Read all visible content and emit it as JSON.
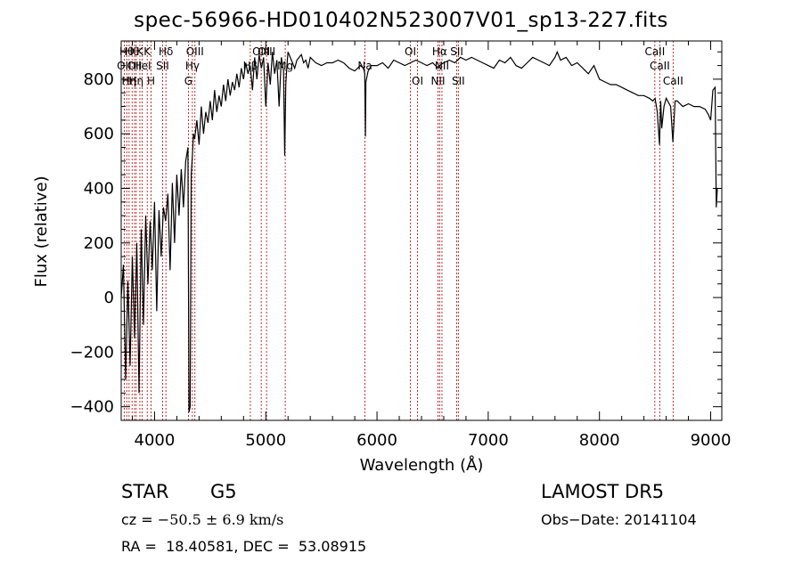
{
  "chart_data": {
    "type": "line",
    "title": "spec-56966-HD010402N523007V01_sp13-227.fits",
    "xlabel": "Wavelength (Å)",
    "ylabel": "Flux (relative)",
    "xlim": [
      3700,
      9100
    ],
    "ylim": [
      -450,
      940
    ],
    "xticks": [
      4000,
      5000,
      6000,
      7000,
      8000,
      9000
    ],
    "yticks": [
      -400,
      -200,
      0,
      200,
      400,
      600,
      800
    ],
    "grid": false,
    "series": [
      {
        "x": [
          3700,
          3720,
          3740,
          3760,
          3780,
          3800,
          3820,
          3840,
          3860,
          3880,
          3900,
          3920,
          3940,
          3960,
          3980,
          4000,
          4020,
          4040,
          4060,
          4080,
          4100,
          4120,
          4140,
          4160,
          4180,
          4200,
          4220,
          4240,
          4260,
          4280,
          4300,
          4310,
          4320,
          4330,
          4340,
          4350,
          4360,
          4380,
          4400,
          4420,
          4440,
          4460,
          4480,
          4500,
          4520,
          4540,
          4560,
          4580,
          4600,
          4620,
          4640,
          4660,
          4680,
          4700,
          4720,
          4740,
          4760,
          4780,
          4800,
          4820,
          4840,
          4860,
          4880,
          4900,
          4920,
          4940,
          4960,
          4980,
          5000,
          5020,
          5040,
          5060,
          5080,
          5100,
          5120,
          5140,
          5160,
          5170,
          5180,
          5190,
          5200,
          5220,
          5240,
          5260,
          5280,
          5300,
          5320,
          5340,
          5360,
          5380,
          5400,
          5450,
          5500,
          5550,
          5600,
          5650,
          5700,
          5750,
          5800,
          5850,
          5880,
          5890,
          5896,
          5900,
          5920,
          5950,
          6000,
          6050,
          6100,
          6150,
          6200,
          6250,
          6300,
          6350,
          6400,
          6450,
          6500,
          6550,
          6563,
          6600,
          6650,
          6700,
          6750,
          6800,
          6850,
          6900,
          6950,
          7000,
          7050,
          7100,
          7150,
          7200,
          7250,
          7300,
          7350,
          7400,
          7450,
          7500,
          7550,
          7600,
          7620,
          7650,
          7700,
          7750,
          7800,
          7850,
          7900,
          7950,
          8000,
          8050,
          8100,
          8150,
          8200,
          8250,
          8300,
          8350,
          8400,
          8450,
          8480,
          8500,
          8520,
          8540,
          8550,
          8560,
          8580,
          8600,
          8640,
          8660,
          8680,
          8700,
          8750,
          8800,
          8850,
          8900,
          8950,
          8980,
          9000,
          9020,
          9040,
          9050,
          9060
        ],
        "y": [
          0,
          120,
          -300,
          60,
          -250,
          150,
          -150,
          200,
          -350,
          250,
          -100,
          300,
          50,
          280,
          100,
          350,
          -50,
          320,
          150,
          330,
          280,
          380,
          100,
          420,
          200,
          450,
          300,
          470,
          330,
          500,
          550,
          -420,
          -400,
          450,
          520,
          600,
          580,
          650,
          560,
          700,
          600,
          680,
          640,
          720,
          650,
          760,
          680,
          740,
          700,
          780,
          720,
          800,
          740,
          790,
          760,
          820,
          770,
          840,
          800,
          860,
          820,
          850,
          760,
          880,
          800,
          890,
          840,
          880,
          700,
          860,
          780,
          900,
          820,
          870,
          700,
          880,
          830,
          520,
          780,
          850,
          900,
          880,
          860,
          840,
          870,
          880,
          890,
          860,
          870,
          840,
          880,
          860,
          850,
          860,
          860,
          870,
          860,
          840,
          830,
          850,
          840,
          820,
          590,
          790,
          830,
          850,
          850,
          860,
          840,
          870,
          860,
          850,
          860,
          870,
          860,
          850,
          860,
          840,
          850,
          860,
          870,
          860,
          880,
          870,
          880,
          870,
          860,
          850,
          840,
          870,
          860,
          880,
          850,
          840,
          860,
          880,
          870,
          860,
          850,
          880,
          900,
          870,
          880,
          850,
          860,
          840,
          820,
          850,
          800,
          790,
          780,
          780,
          770,
          760,
          750,
          740,
          740,
          730,
          720,
          730,
          680,
          560,
          720,
          620,
          700,
          730,
          700,
          570,
          720,
          720,
          700,
          710,
          700,
          700,
          690,
          670,
          650,
          760,
          770,
          330,
          400
        ]
      }
    ],
    "line_labels": [
      {
        "wave": 3727,
        "label": "OII",
        "row": 2
      },
      {
        "wave": 3750,
        "label": "Hθ",
        "row": 1
      },
      {
        "wave": 3771,
        "label": "Hη",
        "row": 3
      },
      {
        "wave": 3798,
        "label": "Hθ",
        "row": 1
      },
      {
        "wave": 3820,
        "label": "OII",
        "row": 2
      },
      {
        "wave": 3835,
        "label": "Hη",
        "row": 3
      },
      {
        "wave": 3868,
        "label": "K",
        "row": 1
      },
      {
        "wave": 3889,
        "label": "HeI",
        "row": 2
      },
      {
        "wave": 3934,
        "label": "K",
        "row": 1
      },
      {
        "wave": 3969,
        "label": "H",
        "row": 3
      },
      {
        "wave": 4072,
        "label": "SII",
        "row": 2
      },
      {
        "wave": 4102,
        "label": "Hδ",
        "row": 1
      },
      {
        "wave": 4304,
        "label": "G",
        "row": 3
      },
      {
        "wave": 4340,
        "label": "Hγ",
        "row": 2
      },
      {
        "wave": 4363,
        "label": "OIII",
        "row": 1
      },
      {
        "wave": 4861,
        "label": "Hβ",
        "row": 2
      },
      {
        "wave": 4959,
        "label": "OIII",
        "row": 1
      },
      {
        "wave": 5007,
        "label": "OIII",
        "row": 1
      },
      {
        "wave": 5175,
        "label": "Mg",
        "row": 2
      },
      {
        "wave": 5892,
        "label": "Na",
        "row": 2
      },
      {
        "wave": 6300,
        "label": "OI",
        "row": 1
      },
      {
        "wave": 6364,
        "label": "OI",
        "row": 3
      },
      {
        "wave": 6548,
        "label": "NII",
        "row": 3
      },
      {
        "wave": 6563,
        "label": "Hα",
        "row": 1
      },
      {
        "wave": 6584,
        "label": "NII",
        "row": 2
      },
      {
        "wave": 6717,
        "label": "SII",
        "row": 1
      },
      {
        "wave": 6731,
        "label": "SII",
        "row": 3
      },
      {
        "wave": 8498,
        "label": "CaII",
        "row": 1
      },
      {
        "wave": 8542,
        "label": "CaII",
        "row": 2
      },
      {
        "wave": 8662,
        "label": "CaII",
        "row": 3
      }
    ]
  },
  "info": {
    "class_label": "STAR",
    "subclass": "G5",
    "survey": "LAMOST DR5",
    "cz_label": "cz = ",
    "cz_value": "−50.5 ± 6.9 km/s",
    "obs_date": "Obs−Date: 20141104",
    "coords": "RA =  18.40581, DEC =  53.08915"
  }
}
